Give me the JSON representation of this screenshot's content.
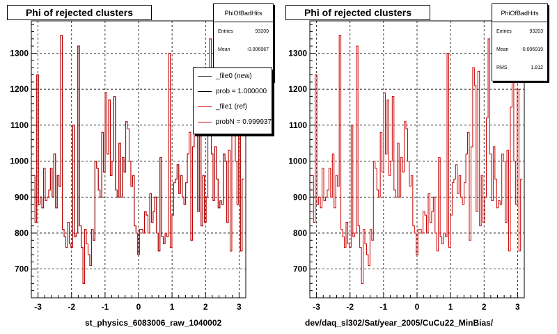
{
  "chart_data": [
    {
      "type": "line",
      "title": "Phi of rejected clusters",
      "xlabel": "st_physics_6083006_raw_1040002",
      "ylabel": "",
      "xlim": [
        -3.2,
        3.2
      ],
      "ylim": [
        620,
        1390
      ],
      "grid": true,
      "x_ticks": [
        -3,
        -2,
        -1,
        0,
        1,
        2,
        3
      ],
      "y_ticks": [
        700,
        800,
        900,
        1000,
        1100,
        1200,
        1300
      ],
      "stats": {
        "name": "PhiOfBadHits",
        "rows": [
          {
            "label": "Entries",
            "value": "93209"
          },
          {
            "label": "Mean",
            "value": "-0.006967"
          }
        ]
      },
      "legend": {
        "placement": "top-right",
        "entries": [
          {
            "label": "_file0 (new)",
            "color": "#000000"
          },
          {
            "label": "prob = 1.000000",
            "color": "#000000"
          },
          {
            "label": "_file1 (ref)",
            "color": "#cc0000"
          },
          {
            "label": "probN = 0.999937",
            "color": "#cc0000"
          }
        ]
      },
      "series": [
        {
          "name": "_file0 (new)",
          "color": "#000000"
        },
        {
          "name": "_file1 (ref)",
          "color": "#cc0000"
        }
      ],
      "bins": {
        "x_start": -3.1416,
        "x_end": 3.1416
      },
      "values": [
        960,
        830,
        1240,
        880,
        900,
        870,
        980,
        890,
        900,
        920,
        980,
        900,
        1020,
        870,
        960,
        930,
        1350,
        810,
        790,
        760,
        830,
        770,
        760,
        1100,
        790,
        800,
        1320,
        820,
        760,
        660,
        810,
        770,
        740,
        710,
        810,
        780,
        1000,
        980,
        920,
        900,
        1080,
        970,
        1190,
        1020,
        1170,
        960,
        1000,
        1180,
        920,
        900,
        1050,
        900,
        1010,
        970,
        1110,
        1090,
        1000,
        930,
        960,
        820,
        800,
        740,
        810,
        810,
        800,
        860,
        850,
        800,
        910,
        830,
        860,
        900,
        800,
        750,
        1010,
        790,
        770,
        800,
        790,
        1300,
        760,
        850,
        940,
        950,
        990,
        910,
        960,
        900,
        880,
        940,
        1020,
        1080,
        780,
        1040,
        1260,
        1210,
        860,
        1250,
        820,
        960,
        830,
        900,
        1120,
        1340,
        1020,
        890,
        1040,
        950,
        870,
        890,
        880,
        1020,
        1000,
        830,
        1030,
        750,
        1150,
        1240,
        1000,
        880,
        1200,
        750,
        950
      ]
    },
    {
      "type": "line",
      "title": "Phi of rejected clusters",
      "xlabel": "dev/daq_sl302/Sat/year_2005/CuCu22_MinBias/",
      "ylabel": "",
      "xlim": [
        -3.2,
        3.2
      ],
      "ylim": [
        620,
        1390
      ],
      "grid": true,
      "x_ticks": [
        -3,
        -2,
        -1,
        0,
        1,
        2,
        3
      ],
      "y_ticks": [
        700,
        800,
        900,
        1000,
        1100,
        1200,
        1300
      ],
      "stats": {
        "name": "PhiOfBadHits",
        "rows": [
          {
            "label": "Entries",
            "value": "93203"
          },
          {
            "label": "Mean",
            "value": "-0.006919"
          },
          {
            "label": "RMS",
            "value": "1.812"
          }
        ]
      },
      "series": [
        {
          "name": "",
          "color": "#cc0000"
        }
      ],
      "bins": {
        "x_start": -3.1416,
        "x_end": 3.1416
      },
      "values": [
        960,
        830,
        1240,
        880,
        900,
        870,
        980,
        890,
        900,
        920,
        980,
        900,
        1020,
        870,
        960,
        930,
        1350,
        810,
        790,
        760,
        830,
        770,
        760,
        1100,
        790,
        800,
        1320,
        820,
        760,
        660,
        810,
        770,
        740,
        710,
        810,
        780,
        1000,
        980,
        920,
        900,
        1080,
        970,
        1190,
        1020,
        1170,
        960,
        1000,
        1180,
        920,
        900,
        1050,
        900,
        1010,
        970,
        1110,
        1090,
        1000,
        930,
        960,
        820,
        800,
        740,
        810,
        810,
        800,
        860,
        850,
        800,
        910,
        830,
        860,
        900,
        800,
        750,
        1010,
        790,
        770,
        800,
        790,
        1300,
        760,
        850,
        940,
        950,
        990,
        910,
        960,
        900,
        880,
        940,
        1020,
        1080,
        780,
        1040,
        1260,
        1210,
        860,
        1250,
        820,
        960,
        830,
        900,
        1120,
        1340,
        1020,
        890,
        1040,
        950,
        870,
        890,
        880,
        1020,
        1000,
        830,
        1030,
        750,
        1150,
        1240,
        1000,
        880,
        1200,
        750,
        950
      ]
    }
  ]
}
